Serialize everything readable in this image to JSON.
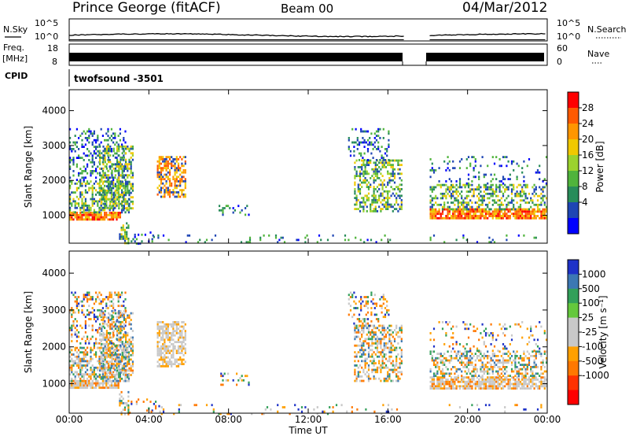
{
  "header": {
    "station": "Prince George (fitACF)",
    "beam": "Beam 00",
    "date": "04/Mar/2012"
  },
  "top_panels": {
    "nsky_label": "N.Sky",
    "nsky_ticks": [
      "10^5",
      "10^0"
    ],
    "nsearch_label": "N.Search",
    "nsearch_ticks": [
      "10^5",
      "10^0"
    ],
    "freq_label_1": "Freq.",
    "freq_label_2": "[MHz]",
    "freq_ticks": [
      "18",
      "8"
    ],
    "nave_label": "Nave",
    "nave_ticks": [
      "60",
      "0"
    ],
    "cpid_label": "CPID",
    "cpid_value": "twofsound  -3501"
  },
  "chart_data": [
    {
      "type": "heatmap",
      "name": "power",
      "ylabel": "Slant Range [km]",
      "yticks": [
        1000,
        2000,
        3000,
        4000
      ],
      "ylim": [
        200,
        4600
      ],
      "xlim": [
        0,
        24
      ],
      "colorbar_label": "Power [dB]",
      "colorbar_ticks": [
        "28",
        "24",
        "20",
        "16",
        "12",
        "8",
        "4"
      ],
      "colorbar_colors": [
        "#ff0000",
        "#ff5a00",
        "#ff9600",
        "#f0c800",
        "#9bd22d",
        "#50b43c",
        "#288c5a",
        "#1e46b4",
        "#0000ff"
      ],
      "gap_hours": [
        16.8,
        18.1
      ]
    },
    {
      "type": "heatmap",
      "name": "velocity",
      "ylabel": "Slant Range [km]",
      "yticks": [
        1000,
        2000,
        3000,
        4000
      ],
      "ylim": [
        200,
        4600
      ],
      "xlim": [
        0,
        24
      ],
      "colorbar_label": "Velocity [m s⁻¹]",
      "colorbar_ticks": [
        "1000",
        "500",
        "100",
        "25",
        "-25",
        "-100",
        "-500",
        "-1000"
      ],
      "colorbar_colors": [
        "#1e32c8",
        "#3c78b4",
        "#32a05a",
        "#64c83c",
        "#c8c8c8",
        "#c8c8c8",
        "#ffa000",
        "#ff7800",
        "#ff3200",
        "#ff0000"
      ],
      "xticks": [
        "00:00",
        "04:00",
        "08:00",
        "12:00",
        "16:00",
        "20:00",
        "00:00"
      ],
      "xlabel": "Time UT"
    }
  ]
}
